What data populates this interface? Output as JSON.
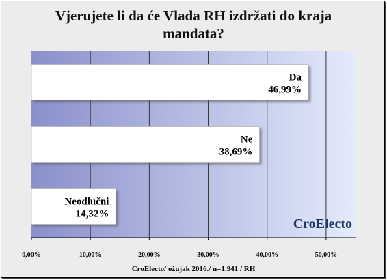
{
  "chart_data": {
    "type": "bar",
    "orientation": "horizontal",
    "title_lines": [
      "Vjerujete li da će Vlada RH izdržati do kraja",
      "mandata?"
    ],
    "categories": [
      "Da",
      "Ne",
      "Neodlučni"
    ],
    "values": [
      46.99,
      38.69,
      14.32
    ],
    "value_labels": [
      "46,99%",
      "38,69%",
      "14,32%"
    ],
    "xlim": [
      0,
      55
    ],
    "x_ticks": [
      0,
      10,
      20,
      30,
      40,
      50
    ],
    "x_tick_labels": [
      "0,00%",
      "10,00%",
      "20,00%",
      "30,00%",
      "40,00%",
      "50,00%"
    ],
    "grid": "vertical",
    "watermark": "CroElecto",
    "footer": "CroElecto/ ožujak  2016./ n=1.941 / RH"
  },
  "colors": {
    "plot_gradient_start": "#8a90cc",
    "plot_gradient_end": "#e4ebfb",
    "bar_fill": "#ffffff",
    "grid": "#333333",
    "frame_background": "#ececec"
  }
}
